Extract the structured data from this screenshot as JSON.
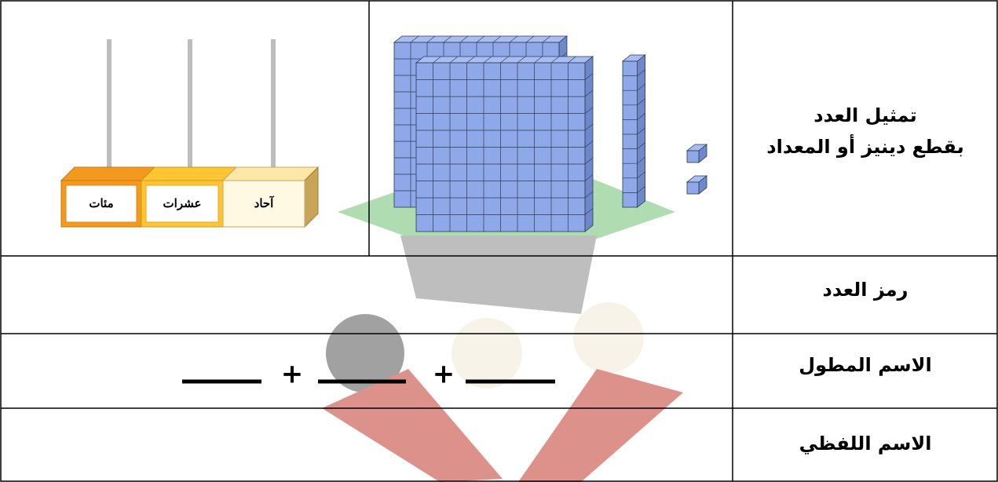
{
  "table": {
    "rows": [
      {
        "label_lines": [
          "تمثيل العدد",
          "بقطع دينيز أو المعداد"
        ]
      },
      {
        "label": "رمز العدد"
      },
      {
        "label": "الاسم المطول",
        "plus_signs": [
          "+",
          "+"
        ]
      },
      {
        "label": "الاسم اللفظي"
      }
    ]
  },
  "abacus": {
    "places": [
      "مئات",
      "عشرات",
      "آحاد"
    ]
  }
}
